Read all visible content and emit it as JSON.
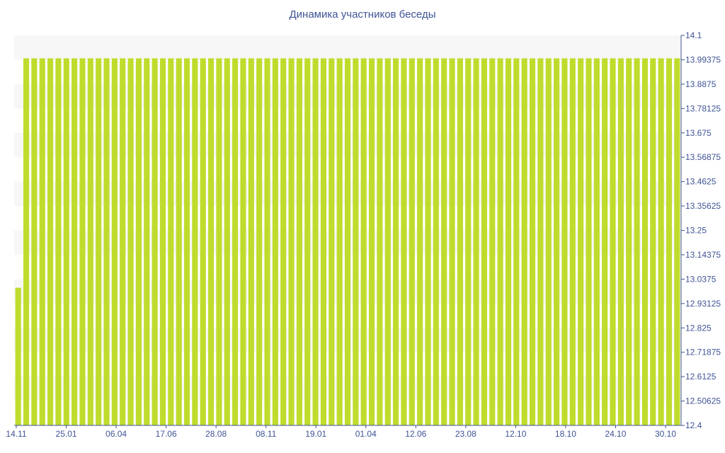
{
  "chart_data": {
    "type": "bar",
    "title": "Динамика участников беседы",
    "xlabel": "",
    "ylabel": "",
    "ylim": [
      12.4,
      14.1
    ],
    "y_ticks": [
      "14.1",
      "13.99375",
      "13.8875",
      "13.78125",
      "13.675",
      "13.56875",
      "13.4625",
      "13.35625",
      "13.25",
      "13.14375",
      "13.0375",
      "12.93125",
      "12.825",
      "12.71875",
      "12.6125",
      "12.50625",
      "12.4"
    ],
    "x_tick_labels": [
      "14.11",
      "25.01",
      "06.04",
      "17.06",
      "28.08",
      "08.11",
      "19.01",
      "01.04",
      "12.06",
      "23.08",
      "12.10",
      "18.10",
      "24.10",
      "30.10"
    ],
    "bar_count": 83,
    "values": [
      13,
      14,
      14,
      14,
      14,
      14,
      14,
      14,
      14,
      14,
      14,
      14,
      14,
      14,
      14,
      14,
      14,
      14,
      14,
      14,
      14,
      14,
      14,
      14,
      14,
      14,
      14,
      14,
      14,
      14,
      14,
      14,
      14,
      14,
      14,
      14,
      14,
      14,
      14,
      14,
      14,
      14,
      14,
      14,
      14,
      14,
      14,
      14,
      14,
      14,
      14,
      14,
      14,
      14,
      14,
      14,
      14,
      14,
      14,
      14,
      14,
      14,
      14,
      14,
      14,
      14,
      14,
      14,
      14,
      14,
      14,
      14,
      14,
      14,
      14,
      14,
      14,
      14,
      14,
      14,
      14,
      14,
      14
    ],
    "y_axis_side": "right",
    "grid": "alternating horizontal bands",
    "legend": "none",
    "colors": {
      "bar": "#bfdc2d",
      "band": "#f7f7f7",
      "axis": "#3f5495",
      "tick_text": "#3f5495",
      "title": "#3f5495"
    }
  }
}
